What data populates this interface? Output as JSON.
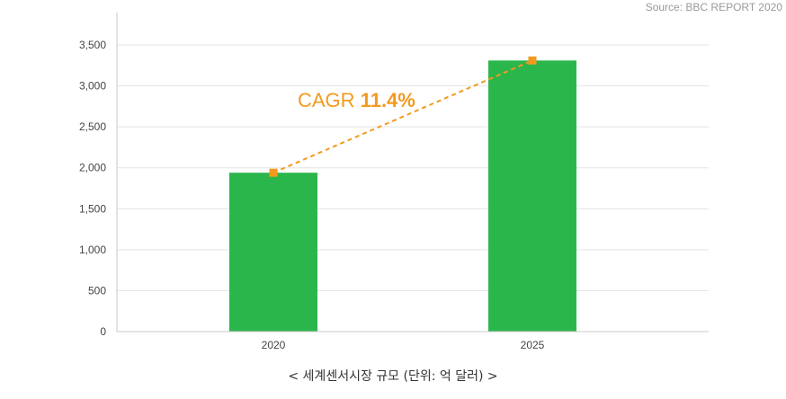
{
  "source": "Source: BBC REPORT 2020",
  "caption": "< 세계센서시장 규모 (단위: 억 달러) >",
  "annotation": {
    "prefix": "CAGR ",
    "value": "11.4%"
  },
  "colors": {
    "bar": "#2bb64c",
    "trend": "#f39a1e",
    "grid": "#e3e3e3",
    "axis": "#c8c8c8"
  },
  "chart_data": {
    "type": "bar",
    "categories": [
      "2020",
      "2025"
    ],
    "values": [
      1940,
      3310
    ],
    "yticks": [
      0,
      500,
      1000,
      1500,
      2000,
      2500,
      3000,
      3500
    ],
    "ytick_labels": [
      "0",
      "500",
      "1,000",
      "1,500",
      "2,000",
      "2,500",
      "3,000",
      "3,500"
    ],
    "ylim": [
      0,
      3500
    ],
    "grid": true,
    "trend_line": true,
    "annotation": "CAGR 11.4%"
  }
}
